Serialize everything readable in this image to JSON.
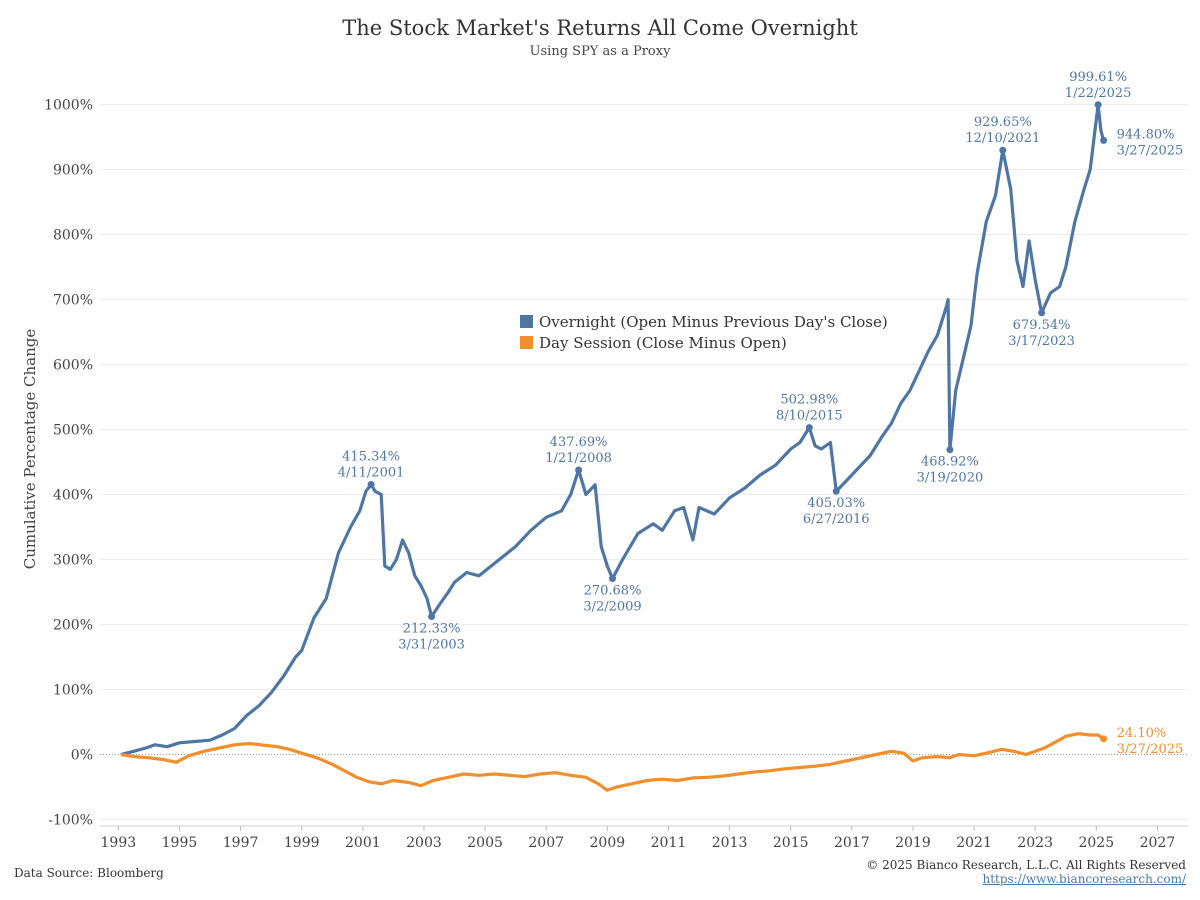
{
  "header": {
    "title": "The Stock Market's Returns All Come Overnight",
    "subtitle": "Using SPY as a Proxy"
  },
  "footer": {
    "source": "Data Source: Bloomberg",
    "copyright": "© 2025 Bianco Research, L.L.C. All Rights Reserved",
    "website": "https://www.biancoresearch.com/"
  },
  "colors": {
    "overnight": "#4e76a5",
    "day": "#f28e2b"
  },
  "chart_data": {
    "type": "line",
    "title": "The Stock Market's Returns All Come Overnight",
    "subtitle": "Using SPY as a Proxy",
    "ylabel": "Cumulative Percentage Change",
    "xlabel": "",
    "xlim": [
      1992.4,
      2028.0
    ],
    "ylim": [
      -110,
      1050
    ],
    "x_ticks": [
      "1993",
      "1995",
      "1997",
      "1999",
      "2001",
      "2003",
      "2005",
      "2007",
      "2009",
      "2011",
      "2013",
      "2015",
      "2017",
      "2019",
      "2021",
      "2023",
      "2025",
      "2027"
    ],
    "y_ticks": [
      "1000%",
      "900%",
      "800%",
      "700%",
      "600%",
      "500%",
      "400%",
      "300%",
      "200%",
      "100%",
      "0%",
      "-100%"
    ],
    "grid": "horizontal",
    "legend_position": "center",
    "series": [
      {
        "name": "Overnight (Open Minus Previous Day's Close)",
        "points": [
          [
            1993.08,
            0
          ],
          [
            1993.5,
            5
          ],
          [
            1993.9,
            10
          ],
          [
            1994.2,
            15
          ],
          [
            1994.6,
            12
          ],
          [
            1995.0,
            18
          ],
          [
            1995.5,
            20
          ],
          [
            1996.0,
            22
          ],
          [
            1996.4,
            30
          ],
          [
            1996.8,
            40
          ],
          [
            1997.2,
            60
          ],
          [
            1997.6,
            75
          ],
          [
            1998.0,
            95
          ],
          [
            1998.4,
            120
          ],
          [
            1998.8,
            150
          ],
          [
            1999.0,
            160
          ],
          [
            1999.4,
            210
          ],
          [
            1999.8,
            240
          ],
          [
            2000.2,
            310
          ],
          [
            2000.6,
            350
          ],
          [
            2000.9,
            375
          ],
          [
            2001.1,
            405
          ],
          [
            2001.27,
            415.34
          ],
          [
            2001.4,
            405
          ],
          [
            2001.6,
            400
          ],
          [
            2001.72,
            290
          ],
          [
            2001.9,
            285
          ],
          [
            2002.1,
            300
          ],
          [
            2002.3,
            330
          ],
          [
            2002.5,
            310
          ],
          [
            2002.7,
            275
          ],
          [
            2002.9,
            260
          ],
          [
            2003.1,
            240
          ],
          [
            2003.25,
            212.33
          ],
          [
            2003.5,
            230
          ],
          [
            2003.8,
            250
          ],
          [
            2004.0,
            265
          ],
          [
            2004.4,
            280
          ],
          [
            2004.8,
            275
          ],
          [
            2005.2,
            290
          ],
          [
            2005.6,
            305
          ],
          [
            2006.0,
            320
          ],
          [
            2006.5,
            345
          ],
          [
            2007.0,
            365
          ],
          [
            2007.5,
            375
          ],
          [
            2007.8,
            400
          ],
          [
            2008.06,
            437.69
          ],
          [
            2008.3,
            400
          ],
          [
            2008.6,
            415
          ],
          [
            2008.8,
            320
          ],
          [
            2009.0,
            290
          ],
          [
            2009.17,
            270.68
          ],
          [
            2009.5,
            300
          ],
          [
            2010.0,
            340
          ],
          [
            2010.5,
            355
          ],
          [
            2010.8,
            345
          ],
          [
            2011.2,
            375
          ],
          [
            2011.5,
            380
          ],
          [
            2011.8,
            330
          ],
          [
            2012.0,
            380
          ],
          [
            2012.5,
            370
          ],
          [
            2013.0,
            395
          ],
          [
            2013.5,
            410
          ],
          [
            2014.0,
            430
          ],
          [
            2014.5,
            445
          ],
          [
            2015.0,
            470
          ],
          [
            2015.3,
            480
          ],
          [
            2015.61,
            502.98
          ],
          [
            2015.8,
            475
          ],
          [
            2016.0,
            470
          ],
          [
            2016.3,
            480
          ],
          [
            2016.49,
            405.03
          ],
          [
            2016.8,
            420
          ],
          [
            2017.2,
            440
          ],
          [
            2017.6,
            460
          ],
          [
            2018.0,
            490
          ],
          [
            2018.3,
            510
          ],
          [
            2018.6,
            540
          ],
          [
            2018.9,
            560
          ],
          [
            2019.2,
            590
          ],
          [
            2019.5,
            620
          ],
          [
            2019.8,
            645
          ],
          [
            2020.1,
            690
          ],
          [
            2020.15,
            700
          ],
          [
            2020.21,
            468.92
          ],
          [
            2020.4,
            560
          ],
          [
            2020.7,
            620
          ],
          [
            2020.9,
            660
          ],
          [
            2021.1,
            740
          ],
          [
            2021.4,
            820
          ],
          [
            2021.7,
            860
          ],
          [
            2021.94,
            929.65
          ],
          [
            2022.2,
            870
          ],
          [
            2022.4,
            760
          ],
          [
            2022.6,
            720
          ],
          [
            2022.8,
            790
          ],
          [
            2023.0,
            730
          ],
          [
            2023.21,
            679.54
          ],
          [
            2023.5,
            710
          ],
          [
            2023.8,
            720
          ],
          [
            2024.0,
            750
          ],
          [
            2024.3,
            820
          ],
          [
            2024.6,
            870
          ],
          [
            2024.8,
            900
          ],
          [
            2025.06,
            999.61
          ],
          [
            2025.15,
            960
          ],
          [
            2025.24,
            944.8
          ]
        ]
      },
      {
        "name": "Day Session (Close Minus Open)",
        "points": [
          [
            1993.08,
            0
          ],
          [
            1993.5,
            -3
          ],
          [
            1994.0,
            -5
          ],
          [
            1994.5,
            -8
          ],
          [
            1994.9,
            -12
          ],
          [
            1995.3,
            -2
          ],
          [
            1995.8,
            5
          ],
          [
            1996.3,
            10
          ],
          [
            1996.8,
            15
          ],
          [
            1997.3,
            17
          ],
          [
            1997.8,
            14
          ],
          [
            1998.2,
            12
          ],
          [
            1998.6,
            8
          ],
          [
            1999.0,
            2
          ],
          [
            1999.5,
            -5
          ],
          [
            2000.0,
            -15
          ],
          [
            2000.4,
            -25
          ],
          [
            2000.8,
            -35
          ],
          [
            2001.2,
            -42
          ],
          [
            2001.6,
            -45
          ],
          [
            2002.0,
            -40
          ],
          [
            2002.5,
            -43
          ],
          [
            2002.9,
            -48
          ],
          [
            2003.3,
            -40
          ],
          [
            2003.8,
            -35
          ],
          [
            2004.3,
            -30
          ],
          [
            2004.8,
            -32
          ],
          [
            2005.3,
            -30
          ],
          [
            2005.8,
            -32
          ],
          [
            2006.3,
            -34
          ],
          [
            2006.8,
            -30
          ],
          [
            2007.3,
            -28
          ],
          [
            2007.8,
            -32
          ],
          [
            2008.3,
            -35
          ],
          [
            2008.7,
            -45
          ],
          [
            2009.0,
            -55
          ],
          [
            2009.3,
            -50
          ],
          [
            2009.8,
            -45
          ],
          [
            2010.3,
            -40
          ],
          [
            2010.8,
            -38
          ],
          [
            2011.3,
            -40
          ],
          [
            2011.8,
            -36
          ],
          [
            2012.3,
            -35
          ],
          [
            2012.8,
            -33
          ],
          [
            2013.3,
            -30
          ],
          [
            2013.8,
            -27
          ],
          [
            2014.3,
            -25
          ],
          [
            2014.8,
            -22
          ],
          [
            2015.3,
            -20
          ],
          [
            2015.8,
            -18
          ],
          [
            2016.3,
            -15
          ],
          [
            2016.8,
            -10
          ],
          [
            2017.3,
            -5
          ],
          [
            2017.8,
            0
          ],
          [
            2018.3,
            5
          ],
          [
            2018.7,
            2
          ],
          [
            2019.0,
            -10
          ],
          [
            2019.3,
            -5
          ],
          [
            2019.8,
            -3
          ],
          [
            2020.2,
            -5
          ],
          [
            2020.5,
            0
          ],
          [
            2021.0,
            -2
          ],
          [
            2021.5,
            3
          ],
          [
            2021.9,
            8
          ],
          [
            2022.3,
            5
          ],
          [
            2022.7,
            0
          ],
          [
            2023.0,
            5
          ],
          [
            2023.3,
            10
          ],
          [
            2023.7,
            20
          ],
          [
            2024.0,
            28
          ],
          [
            2024.4,
            32
          ],
          [
            2024.8,
            30
          ],
          [
            2025.06,
            30
          ],
          [
            2025.24,
            24.1
          ]
        ]
      }
    ],
    "annotations": [
      {
        "series": 0,
        "x": 2001.27,
        "y": 415.34,
        "text1": "415.34%",
        "text2": "4/11/2001",
        "pos": "above"
      },
      {
        "series": 0,
        "x": 2003.25,
        "y": 212.33,
        "text1": "212.33%",
        "text2": "3/31/2003",
        "pos": "below"
      },
      {
        "series": 0,
        "x": 2008.06,
        "y": 437.69,
        "text1": "437.69%",
        "text2": "1/21/2008",
        "pos": "above"
      },
      {
        "series": 0,
        "x": 2009.17,
        "y": 270.68,
        "text1": "270.68%",
        "text2": "3/2/2009",
        "pos": "below"
      },
      {
        "series": 0,
        "x": 2015.61,
        "y": 502.98,
        "text1": "502.98%",
        "text2": "8/10/2015",
        "pos": "above"
      },
      {
        "series": 0,
        "x": 2016.49,
        "y": 405.03,
        "text1": "405.03%",
        "text2": "6/27/2016",
        "pos": "below"
      },
      {
        "series": 0,
        "x": 2020.21,
        "y": 468.92,
        "text1": "468.92%",
        "text2": "3/19/2020",
        "pos": "below"
      },
      {
        "series": 0,
        "x": 2021.94,
        "y": 929.65,
        "text1": "929.65%",
        "text2": "12/10/2021",
        "pos": "above"
      },
      {
        "series": 0,
        "x": 2023.21,
        "y": 679.54,
        "text1": "679.54%",
        "text2": "3/17/2023",
        "pos": "below"
      },
      {
        "series": 0,
        "x": 2025.06,
        "y": 999.61,
        "text1": "999.61%",
        "text2": "1/22/2025",
        "pos": "above"
      },
      {
        "series": 0,
        "x": 2025.24,
        "y": 944.8,
        "text1": "944.80%",
        "text2": "3/27/2025",
        "pos": "right"
      },
      {
        "series": 1,
        "x": 2025.24,
        "y": 24.1,
        "text1": "24.10%",
        "text2": "3/27/2025",
        "pos": "right"
      }
    ]
  }
}
